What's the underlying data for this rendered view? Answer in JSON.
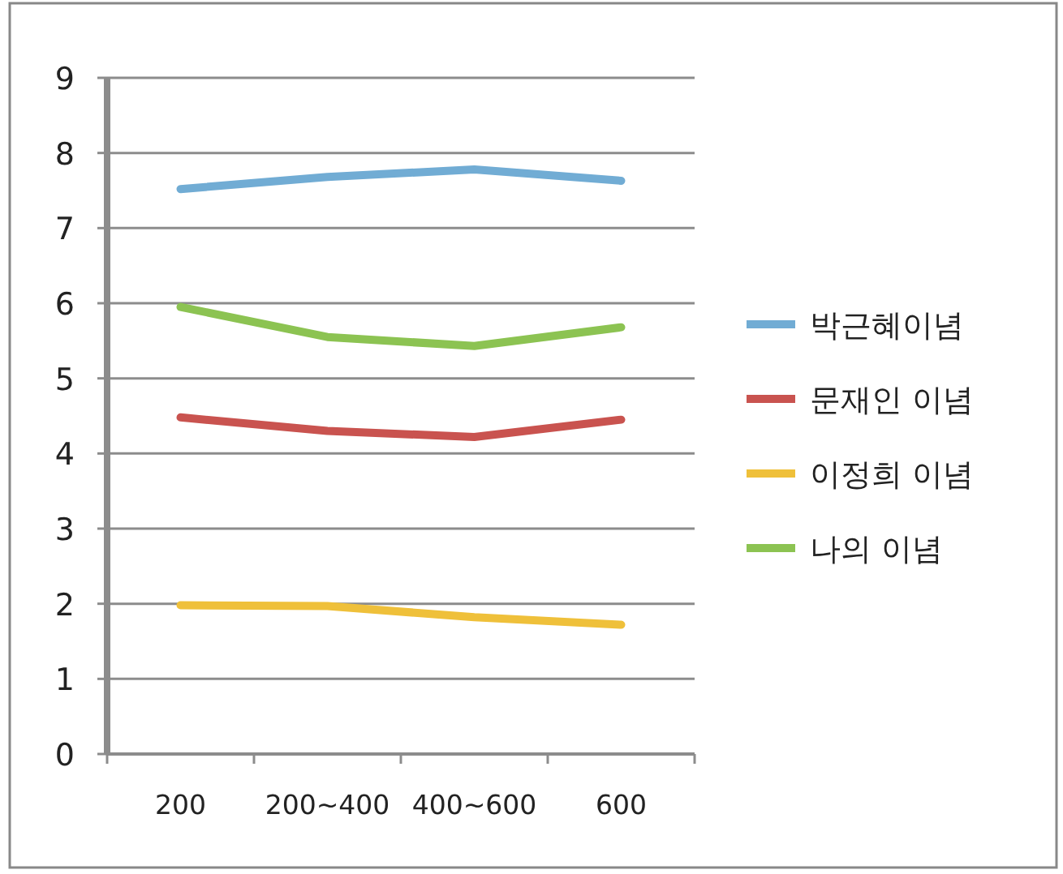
{
  "chart_data": {
    "type": "line",
    "categories": [
      "200",
      "200~400",
      "400~600",
      "600"
    ],
    "series": [
      {
        "name": "박근혜이념",
        "color": "#71acd4",
        "values": [
          7.52,
          7.68,
          7.78,
          7.63
        ]
      },
      {
        "name": "문재인 이념",
        "color": "#c9534f",
        "values": [
          4.48,
          4.3,
          4.22,
          4.45
        ]
      },
      {
        "name": "이정희 이념",
        "color": "#efc03a",
        "values": [
          1.98,
          1.97,
          1.82,
          1.72
        ]
      },
      {
        "name": "나의 이념",
        "color": "#8cc352",
        "values": [
          5.95,
          5.55,
          5.43,
          5.68
        ]
      }
    ],
    "ylim": [
      0,
      9
    ],
    "yticks": [
      0,
      1,
      2,
      3,
      4,
      5,
      6,
      7,
      8,
      9
    ],
    "grid": "y",
    "legend": "right",
    "marker": "none",
    "line_style": "solid"
  }
}
